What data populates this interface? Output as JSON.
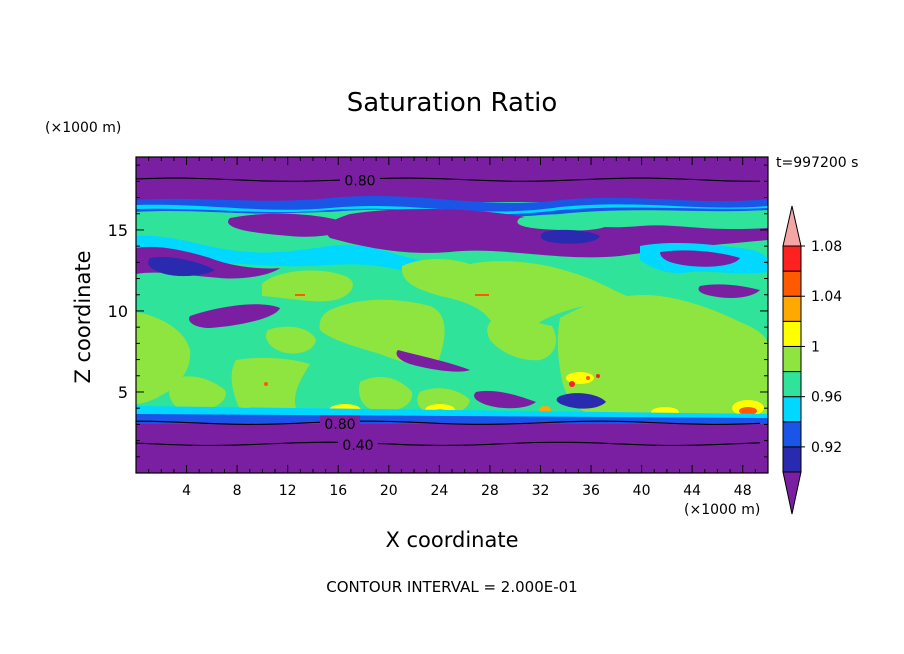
{
  "chart_data": {
    "type": "heatmap",
    "title": "Saturation Ratio",
    "xlabel": "X coordinate",
    "ylabel": "Z coordinate",
    "x_unit": "(×1000 m)",
    "y_unit": "(×1000 m)",
    "time_label": "t=997200 s",
    "footer": "CONTOUR INTERVAL = 2.000E-01",
    "xlim": [
      0,
      50
    ],
    "ylim": [
      0,
      19.5
    ],
    "x_ticks": [
      4,
      8,
      12,
      16,
      20,
      24,
      28,
      32,
      36,
      40,
      44,
      48
    ],
    "y_ticks": [
      5,
      10,
      15
    ],
    "colorbar": {
      "levels": [
        0.92,
        0.96,
        1,
        1.04,
        1.08
      ],
      "level_labels": [
        "0.92",
        "0.96",
        "1",
        "1.04",
        "1.08"
      ],
      "colors": [
        "#7b1fa2",
        "#2a2ab0",
        "#1a55e8",
        "#00d8ff",
        "#2fe39a",
        "#8ee53f",
        "#ffff00",
        "#ffa800",
        "#ff5a00",
        "#ff2020",
        "#f4a6a6"
      ]
    },
    "line_contours": [
      {
        "label": "0.80",
        "z": 18.1
      },
      {
        "label": "0.80",
        "z": 3.1
      },
      {
        "label": "0.40",
        "z": 1.8
      }
    ]
  }
}
